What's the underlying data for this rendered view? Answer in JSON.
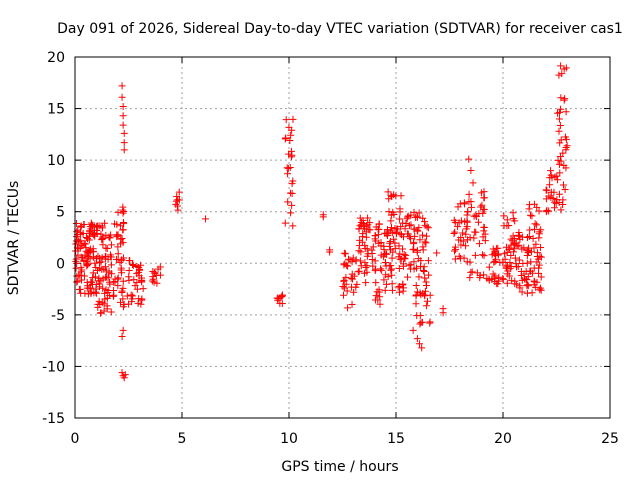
{
  "chart_data": {
    "type": "scatter",
    "title": "Day 091 of 2026, Sidereal Day-to-day VTEC variation (SDTVAR) for receiver cas1",
    "xlabel": "GPS time / hours",
    "ylabel": "SDTVAR / TECUs",
    "xlim": [
      0,
      25
    ],
    "ylim": [
      -15,
      20
    ],
    "xticks": [
      0,
      5,
      10,
      15,
      20,
      25
    ],
    "yticks": [
      -15,
      -10,
      -5,
      0,
      5,
      10,
      15,
      20
    ],
    "xtick_labels": [
      "0",
      "5",
      "10",
      "15",
      "20",
      "25"
    ],
    "ytick_labels": [
      "-15",
      "-10",
      "-5",
      "0",
      "5",
      "10",
      "15",
      "20"
    ],
    "grid": true,
    "marker": "+",
    "series_color": "#ff0000",
    "clusters": [
      {
        "x": [
          0.0,
          1.0
        ],
        "y": [
          -3.0,
          4.0
        ],
        "n": 110
      },
      {
        "x": [
          1.0,
          2.0
        ],
        "y": [
          -5.0,
          4.0
        ],
        "n": 90
      },
      {
        "x": [
          2.0,
          2.3
        ],
        "y": [
          -5.0,
          5.5
        ],
        "n": 35
      },
      {
        "x": [
          2.4,
          3.2
        ],
        "y": [
          -4.0,
          0.5
        ],
        "n": 35
      },
      {
        "x": [
          3.6,
          4.0
        ],
        "y": [
          -2.0,
          -0.3
        ],
        "n": 12
      },
      {
        "x": [
          4.7,
          4.9
        ],
        "y": [
          4.0,
          7.0
        ],
        "n": 8
      },
      {
        "x": [
          9.4,
          9.7
        ],
        "y": [
          -4.0,
          -3.0
        ],
        "n": 10
      },
      {
        "x": [
          9.8,
          10.2
        ],
        "y": [
          3.5,
          14.5
        ],
        "n": 25
      },
      {
        "x": [
          12.5,
          13.2
        ],
        "y": [
          -4.5,
          1.0
        ],
        "n": 30
      },
      {
        "x": [
          13.2,
          14.0
        ],
        "y": [
          -2.0,
          4.5
        ],
        "n": 45
      },
      {
        "x": [
          14.0,
          14.6
        ],
        "y": [
          -4.0,
          4.0
        ],
        "n": 45
      },
      {
        "x": [
          14.6,
          15.3
        ],
        "y": [
          -3.0,
          7.0
        ],
        "n": 55
      },
      {
        "x": [
          15.3,
          15.9
        ],
        "y": [
          -3.0,
          5.0
        ],
        "n": 40
      },
      {
        "x": [
          15.9,
          16.6
        ],
        "y": [
          -6.0,
          5.0
        ],
        "n": 55
      },
      {
        "x": [
          17.7,
          18.4
        ],
        "y": [
          -1.0,
          6.0
        ],
        "n": 35
      },
      {
        "x": [
          18.4,
          19.2
        ],
        "y": [
          -2.0,
          7.0
        ],
        "n": 40
      },
      {
        "x": [
          19.2,
          20.0
        ],
        "y": [
          -2.0,
          1.5
        ],
        "n": 30
      },
      {
        "x": [
          20.0,
          20.6
        ],
        "y": [
          -2.0,
          5.0
        ],
        "n": 40
      },
      {
        "x": [
          20.6,
          21.2
        ],
        "y": [
          -3.0,
          3.0
        ],
        "n": 40
      },
      {
        "x": [
          21.2,
          21.8
        ],
        "y": [
          -4.5,
          6.0
        ],
        "n": 45
      },
      {
        "x": [
          22.0,
          22.5
        ],
        "y": [
          5.0,
          9.0
        ],
        "n": 20
      },
      {
        "x": [
          22.5,
          23.0
        ],
        "y": [
          5.0,
          19.8
        ],
        "n": 40
      }
    ],
    "points": [
      [
        2.2,
        17.2
      ],
      [
        2.2,
        16.1
      ],
      [
        2.25,
        15.2
      ],
      [
        2.25,
        14.3
      ],
      [
        2.25,
        13.4
      ],
      [
        2.3,
        12.6
      ],
      [
        2.3,
        11.7
      ],
      [
        2.3,
        11.0
      ],
      [
        2.25,
        -6.5
      ],
      [
        2.2,
        -7.1
      ],
      [
        2.2,
        -10.6
      ],
      [
        2.25,
        -10.9
      ],
      [
        2.3,
        -11.1
      ],
      [
        2.35,
        -10.8
      ],
      [
        6.1,
        4.3
      ],
      [
        11.6,
        4.7
      ],
      [
        11.6,
        4.5
      ],
      [
        11.9,
        1.3
      ],
      [
        11.9,
        1.1
      ],
      [
        16.9,
        1.0
      ],
      [
        17.2,
        -4.4
      ],
      [
        17.2,
        -4.8
      ],
      [
        15.8,
        -6.5
      ],
      [
        16.0,
        -7.3
      ],
      [
        16.2,
        -8.2
      ],
      [
        16.1,
        -7.8
      ],
      [
        18.4,
        10.1
      ],
      [
        18.5,
        9.0
      ],
      [
        18.6,
        7.8
      ]
    ]
  }
}
